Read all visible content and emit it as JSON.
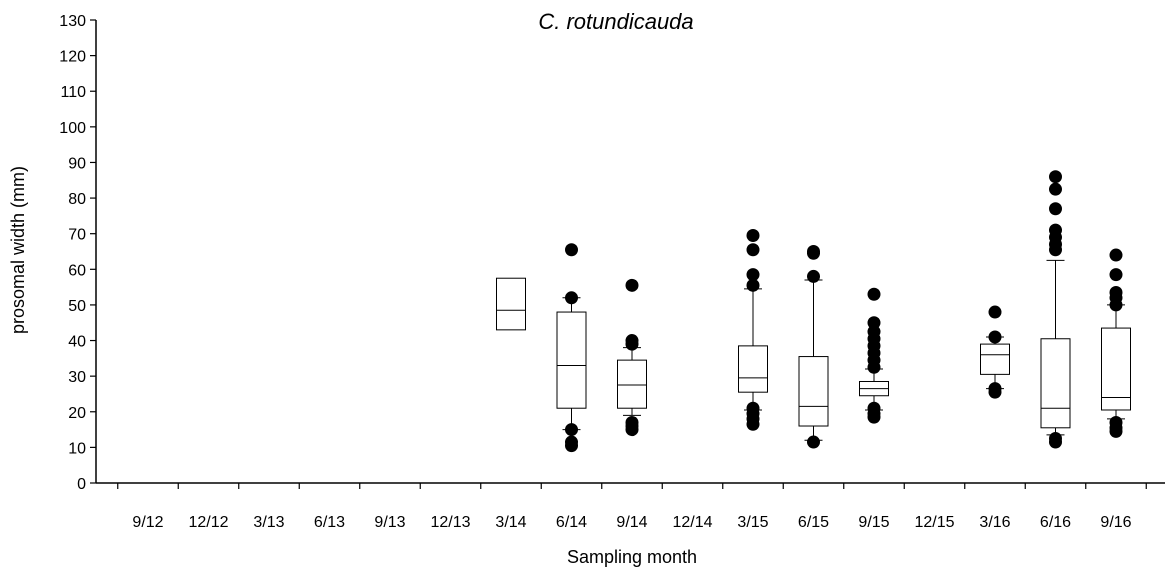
{
  "chart_data": {
    "type": "box",
    "title": "C. rotundicauda",
    "xlabel": "Sampling month",
    "ylabel": "prosomal width (mm)",
    "ylim": [
      0,
      130
    ],
    "yticks": [
      0,
      10,
      20,
      30,
      40,
      50,
      60,
      70,
      80,
      90,
      100,
      110,
      120,
      130
    ],
    "categories": [
      "9/12",
      "12/12",
      "3/13",
      "6/13",
      "9/13",
      "12/13",
      "3/14",
      "6/14",
      "9/14",
      "12/14",
      "3/15",
      "6/15",
      "9/15",
      "12/15",
      "3/16",
      "6/16",
      "9/16"
    ],
    "grid": false,
    "boxes": [
      {
        "category": "3/14",
        "whisker_low": null,
        "q1": 43,
        "median": 48.5,
        "q3": 57.5,
        "whisker_high": null,
        "outliers": []
      },
      {
        "category": "6/14",
        "whisker_low": 15,
        "q1": 21,
        "median": 33,
        "q3": 48,
        "whisker_high": 52,
        "outliers": [
          10.5,
          11.5,
          15,
          52,
          65.5
        ]
      },
      {
        "category": "9/14",
        "whisker_low": 19,
        "q1": 21,
        "median": 27.5,
        "q3": 34.5,
        "whisker_high": 38,
        "outliers": [
          15,
          16,
          17,
          39,
          40,
          55.5
        ]
      },
      {
        "category": "3/15",
        "whisker_low": 20.5,
        "q1": 25.5,
        "median": 29.5,
        "q3": 38.5,
        "whisker_high": 54.5,
        "outliers": [
          16.5,
          18,
          19.5,
          21,
          55.5,
          58.5,
          65.5,
          69.5
        ]
      },
      {
        "category": "6/15",
        "whisker_low": 12,
        "q1": 16,
        "median": 21.5,
        "q3": 35.5,
        "whisker_high": 57,
        "outliers": [
          11.5,
          58,
          64.5,
          65
        ]
      },
      {
        "category": "9/15",
        "whisker_low": 20.5,
        "q1": 24.5,
        "median": 26.5,
        "q3": 28.5,
        "whisker_high": 32,
        "outliers": [
          18.5,
          19.5,
          21,
          32.5,
          34.5,
          36.5,
          38.5,
          40.5,
          42.5,
          45,
          53
        ]
      },
      {
        "category": "3/16",
        "whisker_low": 26.5,
        "q1": 30.5,
        "median": 36,
        "q3": 39,
        "whisker_high": 41,
        "outliers": [
          25.5,
          26.5,
          41,
          48
        ]
      },
      {
        "category": "6/16",
        "whisker_low": 13.5,
        "q1": 15.5,
        "median": 21,
        "q3": 40.5,
        "whisker_high": 62.5,
        "outliers": [
          11.5,
          12.5,
          65.5,
          67,
          69,
          71,
          77,
          82.5,
          86
        ]
      },
      {
        "category": "9/16",
        "whisker_low": 18,
        "q1": 20.5,
        "median": 24,
        "q3": 43.5,
        "whisker_high": 50,
        "outliers": [
          14.5,
          15.5,
          17,
          50,
          52,
          53.5,
          58.5,
          64
        ]
      }
    ]
  }
}
